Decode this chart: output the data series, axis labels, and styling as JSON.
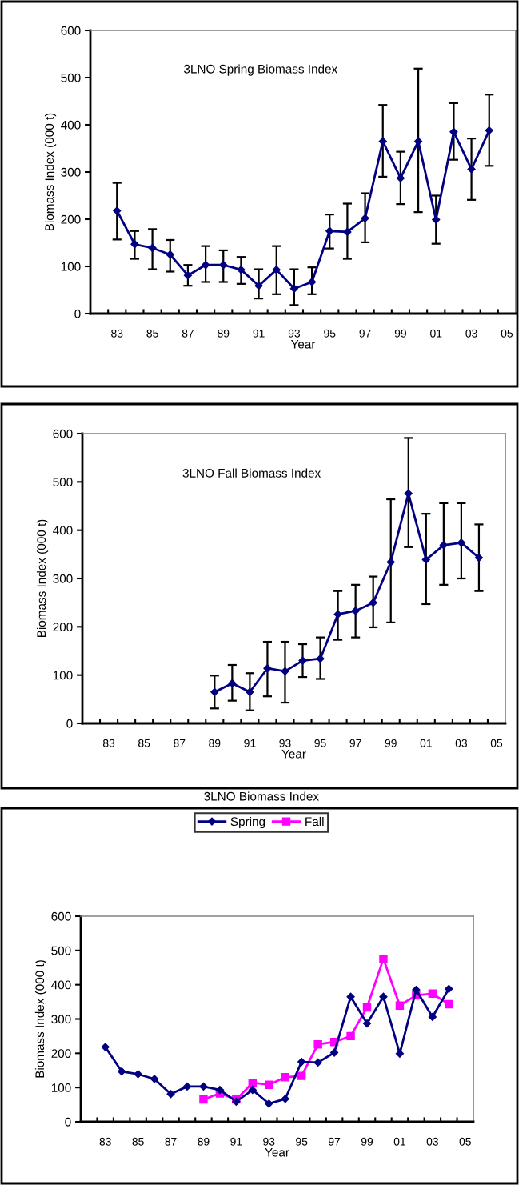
{
  "chart_data": [
    {
      "type": "line",
      "title": "3LNO Spring Biomass Index",
      "xlabel": "Year",
      "ylabel": "Biomass Index (000 t)",
      "categories": [
        "83",
        null,
        "85",
        null,
        "87",
        null,
        "89",
        null,
        "91",
        null,
        "93",
        null,
        "95",
        null,
        "97",
        null,
        "99",
        null,
        "01",
        null,
        "03",
        null,
        "05"
      ],
      "series": [
        {
          "color": "#000080",
          "marker": "diamond",
          "values": [
            218,
            147,
            139,
            125,
            81,
            103,
            103,
            93,
            59,
            93,
            53,
            67,
            175,
            173,
            202,
            365,
            287,
            365,
            199,
            385,
            306,
            388,
            null
          ],
          "errors": [
            [
              157,
              277
            ],
            [
              116,
              175
            ],
            [
              94,
              179
            ],
            [
              89,
              156
            ],
            [
              59,
              103
            ],
            [
              67,
              143
            ],
            [
              67,
              134
            ],
            [
              63,
              120
            ],
            [
              32,
              94
            ],
            [
              41,
              143
            ],
            [
              18,
              94
            ],
            [
              41,
              98
            ],
            [
              138,
              210
            ],
            [
              116,
              233
            ],
            [
              151,
              255
            ],
            [
              290,
              442
            ],
            [
              232,
              343
            ],
            [
              215,
              519
            ],
            [
              148,
              250
            ],
            [
              326,
              446
            ],
            [
              241,
              371
            ],
            [
              313,
              464
            ],
            null
          ]
        }
      ],
      "ylim": [
        0,
        600
      ],
      "yticks": [
        0,
        100,
        200,
        300,
        400,
        500,
        600
      ],
      "grid": false
    },
    {
      "type": "line",
      "title": "3LNO Fall Biomass Index",
      "xlabel": "Year",
      "ylabel": "Biomass Index (000 t)",
      "categories": [
        "83",
        null,
        "85",
        null,
        "87",
        null,
        "89",
        null,
        "91",
        null,
        "93",
        null,
        "95",
        null,
        "97",
        null,
        "99",
        null,
        "01",
        null,
        "03",
        null,
        "05"
      ],
      "series": [
        {
          "color": "#000080",
          "marker": "diamond",
          "values": [
            null,
            null,
            null,
            null,
            null,
            null,
            65,
            83,
            65,
            114,
            108,
            130,
            134,
            226,
            233,
            250,
            334,
            476,
            339,
            369,
            374,
            343,
            null
          ],
          "errors": [
            null,
            null,
            null,
            null,
            null,
            null,
            [
              31,
              99
            ],
            [
              47,
              121
            ],
            [
              27,
              104
            ],
            [
              56,
              169
            ],
            [
              43,
              169
            ],
            [
              96,
              164
            ],
            [
              92,
              178
            ],
            [
              173,
              274
            ],
            [
              178,
              287
            ],
            [
              199,
              304
            ],
            [
              209,
              464
            ],
            [
              365,
              591
            ],
            [
              247,
              434
            ],
            [
              287,
              456
            ],
            [
              300,
              456
            ],
            [
              274,
              412
            ],
            null
          ]
        }
      ],
      "ylim": [
        0,
        600
      ],
      "yticks": [
        0,
        100,
        200,
        300,
        400,
        500,
        600
      ],
      "grid": false
    },
    {
      "type": "line",
      "title": "3LNO Biomass Index",
      "xlabel": "Year",
      "ylabel": "Biomass Index (000 t)",
      "categories": [
        "83",
        null,
        "85",
        null,
        "87",
        null,
        "89",
        null,
        "91",
        null,
        "93",
        null,
        "95",
        null,
        "97",
        null,
        "99",
        null,
        "01",
        null,
        "03",
        null,
        "05"
      ],
      "series": [
        {
          "name": "Spring",
          "color": "#000080",
          "marker": "diamond",
          "values": [
            218,
            147,
            139,
            125,
            81,
            103,
            103,
            93,
            59,
            93,
            53,
            67,
            175,
            173,
            202,
            365,
            287,
            365,
            199,
            385,
            306,
            388,
            null
          ]
        },
        {
          "name": "Fall",
          "color": "#ff00ff",
          "marker": "square",
          "values": [
            null,
            null,
            null,
            null,
            null,
            null,
            65,
            83,
            65,
            114,
            108,
            130,
            134,
            226,
            233,
            250,
            334,
            476,
            339,
            369,
            374,
            343,
            null
          ]
        }
      ],
      "ylim": [
        0,
        600
      ],
      "yticks": [
        0,
        100,
        200,
        300,
        400,
        500,
        600
      ],
      "grid": false,
      "legend": "top"
    }
  ]
}
